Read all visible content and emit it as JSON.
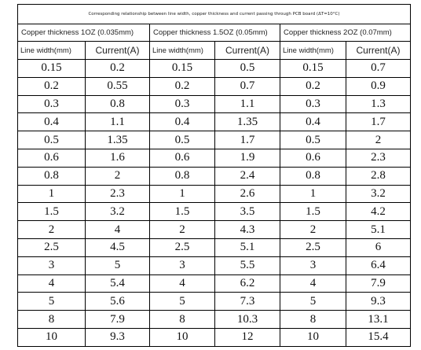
{
  "table": {
    "title": "Corresponding relationship between line width, copper thickness and current passing through PCB board (ΔT=10°C)",
    "groups": [
      "Copper thickness 1OZ (0.035mm)",
      "Copper thickness 1.5OZ (0.05mm)",
      "Copper thickness 2OZ (0.07mm)"
    ],
    "columns": [
      "Line width(mm)",
      "Current(A)",
      "Line width(mm)",
      "Current(A)",
      "Line width(mm)",
      "Current(A)"
    ],
    "rows": [
      [
        "0.15",
        "0.2",
        "0.15",
        "0.5",
        "0.15",
        "0.7"
      ],
      [
        "0.2",
        "0.55",
        "0.2",
        "0.7",
        "0.2",
        "0.9"
      ],
      [
        "0.3",
        "0.8",
        "0.3",
        "1.1",
        "0.3",
        "1.3"
      ],
      [
        "0.4",
        "1.1",
        "0.4",
        "1.35",
        "0.4",
        "1.7"
      ],
      [
        "0.5",
        "1.35",
        "0.5",
        "1.7",
        "0.5",
        "2"
      ],
      [
        "0.6",
        "1.6",
        "0.6",
        "1.9",
        "0.6",
        "2.3"
      ],
      [
        "0.8",
        "2",
        "0.8",
        "2.4",
        "0.8",
        "2.8"
      ],
      [
        "1",
        "2.3",
        "1",
        "2.6",
        "1",
        "3.2"
      ],
      [
        "1.5",
        "3.2",
        "1.5",
        "3.5",
        "1.5",
        "4.2"
      ],
      [
        "2",
        "4",
        "2",
        "4.3",
        "2",
        "5.1"
      ],
      [
        "2.5",
        "4.5",
        "2.5",
        "5.1",
        "2.5",
        "6"
      ],
      [
        "3",
        "5",
        "3",
        "5.5",
        "3",
        "6.4"
      ],
      [
        "4",
        "5.4",
        "4",
        "6.2",
        "4",
        "7.9"
      ],
      [
        "5",
        "5.6",
        "5",
        "7.3",
        "5",
        "9.3"
      ],
      [
        "8",
        "7.9",
        "8",
        "10.3",
        "8",
        "13.1"
      ],
      [
        "10",
        "9.3",
        "10",
        "12",
        "10",
        "15.4"
      ]
    ]
  }
}
